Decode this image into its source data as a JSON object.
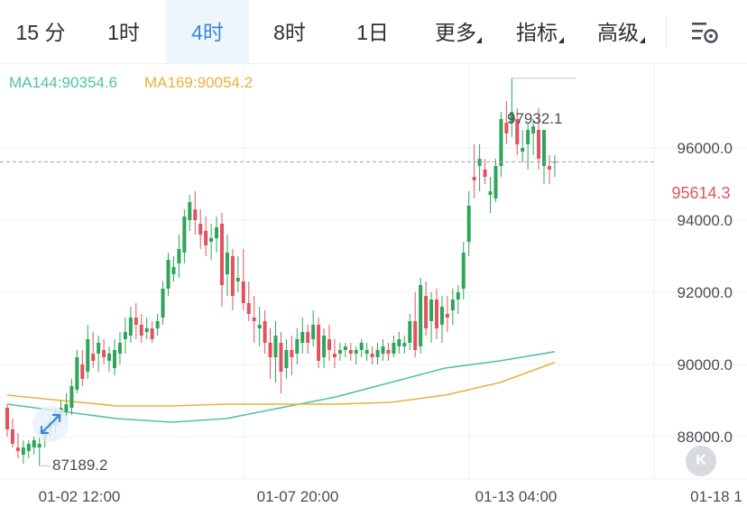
{
  "tabs": {
    "m15": "15 分",
    "h1": "1时",
    "h4": "4时",
    "h8": "8时",
    "d1": "1日",
    "more": "更多",
    "indicators": "指标",
    "advanced": "高级"
  },
  "legend": {
    "ma144": "MA144:90354.6",
    "ma169": "MA169:90054.2",
    "ma144_color": "#4fc3a1",
    "ma169_color": "#e8b33a"
  },
  "labels": {
    "high": "97932.1",
    "low": "87189.2",
    "current": "95614.3",
    "collapse": "K"
  },
  "colors": {
    "up": "#2ea55a",
    "down": "#e0535f",
    "grid": "#eef0f3",
    "axis_text": "#474d57",
    "active_tab": "#3a86d8"
  },
  "chart_data": {
    "type": "candlestick",
    "ylim": [
      87000,
      98200
    ],
    "yticks": [
      "88000.0",
      "90000.0",
      "92000.0",
      "94000.0",
      "96000.0"
    ],
    "ytick_values": [
      88000,
      90000,
      92000,
      94000,
      96000
    ],
    "xticks": [
      "01-02 12:00",
      "01-07 20:00",
      "01-13 04:00",
      "01-18 1"
    ],
    "current_price": 95614.3,
    "high_price": 97932.1,
    "low_price": 87189.2,
    "ma144": [
      88900,
      88700,
      88500,
      88400,
      88500,
      88800,
      89100,
      89500,
      89900,
      90100,
      90354.6
    ],
    "ma169": [
      89150,
      89000,
      88850,
      88850,
      88900,
      88900,
      88900,
      88950,
      89150,
      89500,
      90054.2
    ],
    "series": [
      {
        "name": "K-line",
        "ohlc": [
          [
            88800,
            88900,
            88000,
            88200
          ],
          [
            88200,
            88500,
            87700,
            87800
          ],
          [
            87700,
            88100,
            87400,
            87600
          ],
          [
            87500,
            87900,
            87250,
            87700
          ],
          [
            87600,
            87900,
            87400,
            87800
          ],
          [
            87700,
            88000,
            87500,
            87900
          ],
          [
            87700,
            88000,
            87189.2,
            87800
          ],
          [
            87900,
            88400,
            87700,
            88200
          ],
          [
            88200,
            88600,
            88000,
            88400
          ],
          [
            88300,
            88800,
            88100,
            88700
          ],
          [
            88600,
            89000,
            88400,
            88800
          ],
          [
            88700,
            89200,
            88500,
            88900
          ],
          [
            88800,
            89600,
            88600,
            89400
          ],
          [
            89300,
            90400,
            89200,
            90200
          ],
          [
            90000,
            90400,
            89400,
            89600
          ],
          [
            89800,
            91100,
            89600,
            90700
          ],
          [
            90300,
            90900,
            89900,
            90100
          ],
          [
            90300,
            90800,
            89800,
            90600
          ],
          [
            90400,
            90700,
            90000,
            90200
          ],
          [
            90100,
            90500,
            89800,
            90300
          ],
          [
            89900,
            90700,
            89700,
            90400
          ],
          [
            90300,
            90900,
            90000,
            90600
          ],
          [
            90700,
            91300,
            90300,
            90900
          ],
          [
            90800,
            91600,
            90600,
            91300
          ],
          [
            91300,
            91700,
            90700,
            91100
          ],
          [
            91100,
            91400,
            90600,
            90800
          ],
          [
            90900,
            91300,
            90700,
            91000
          ],
          [
            91000,
            91200,
            90600,
            90700
          ],
          [
            91000,
            91400,
            90800,
            91200
          ],
          [
            91300,
            92300,
            91100,
            92100
          ],
          [
            92100,
            93100,
            91900,
            92900
          ],
          [
            92500,
            93000,
            92300,
            92700
          ],
          [
            92800,
            93600,
            92400,
            93200
          ],
          [
            93100,
            94300,
            92800,
            94100
          ],
          [
            94000,
            94700,
            93700,
            94500
          ],
          [
            94300,
            94800,
            93600,
            94000
          ],
          [
            93900,
            94300,
            93200,
            93600
          ],
          [
            93700,
            94100,
            93000,
            93300
          ],
          [
            93400,
            93900,
            92900,
            93500
          ],
          [
            93500,
            94100,
            93100,
            93800
          ],
          [
            93900,
            94200,
            91600,
            92200
          ],
          [
            92500,
            93600,
            91900,
            93100
          ],
          [
            93000,
            93200,
            91500,
            91900
          ],
          [
            92300,
            93000,
            92000,
            92400
          ],
          [
            92300,
            93200,
            91500,
            91700
          ],
          [
            91700,
            92300,
            91200,
            91400
          ],
          [
            91300,
            91900,
            90600,
            91200
          ],
          [
            91000,
            91600,
            90500,
            91100
          ],
          [
            91200,
            91500,
            90300,
            90600
          ],
          [
            90600,
            91000,
            89600,
            90200
          ],
          [
            90200,
            91200,
            89500,
            90800
          ],
          [
            90600,
            90900,
            89200,
            89800
          ],
          [
            89900,
            90700,
            89600,
            90400
          ],
          [
            90400,
            90800,
            89700,
            90200
          ],
          [
            90300,
            91000,
            90000,
            90700
          ],
          [
            90600,
            91300,
            90300,
            90900
          ],
          [
            90900,
            91100,
            90300,
            90600
          ],
          [
            90700,
            91500,
            90500,
            91100
          ],
          [
            91100,
            91300,
            89900,
            90100
          ],
          [
            90200,
            91000,
            89900,
            90800
          ],
          [
            90700,
            91100,
            90100,
            90400
          ],
          [
            90300,
            90700,
            89900,
            90200
          ],
          [
            90300,
            90600,
            90100,
            90400
          ],
          [
            90400,
            90600,
            90200,
            90500
          ],
          [
            90400,
            90600,
            90100,
            90300
          ],
          [
            90300,
            90500,
            90000,
            90400
          ],
          [
            90400,
            90700,
            90200,
            90600
          ],
          [
            90300,
            90600,
            90100,
            90400
          ],
          [
            90300,
            90500,
            90000,
            90200
          ],
          [
            90200,
            90600,
            90000,
            90400
          ],
          [
            90300,
            90700,
            90100,
            90500
          ],
          [
            90400,
            90600,
            90100,
            90300
          ],
          [
            90300,
            90800,
            90200,
            90600
          ],
          [
            90500,
            90900,
            90300,
            90700
          ],
          [
            90500,
            90800,
            90300,
            90600
          ],
          [
            90600,
            91400,
            90400,
            91200
          ],
          [
            91200,
            92000,
            90200,
            90400
          ],
          [
            90500,
            92400,
            90300,
            92200
          ],
          [
            91900,
            92300,
            90800,
            91000
          ],
          [
            91200,
            92000,
            90600,
            91800
          ],
          [
            91800,
            92100,
            90700,
            91000
          ],
          [
            91100,
            91900,
            90600,
            91600
          ],
          [
            91400,
            91900,
            90900,
            91300
          ],
          [
            91500,
            92100,
            91100,
            91800
          ],
          [
            91800,
            92200,
            91400,
            92000
          ],
          [
            92100,
            93400,
            91800,
            93100
          ],
          [
            93400,
            94800,
            93000,
            94400
          ],
          [
            95200,
            96100,
            94600,
            95100
          ],
          [
            95500,
            96100,
            94800,
            95700
          ],
          [
            95400,
            95700,
            95000,
            95200
          ],
          [
            94700,
            95200,
            94200,
            94800
          ],
          [
            94600,
            95700,
            94500,
            95500
          ],
          [
            95500,
            97000,
            95200,
            96800
          ],
          [
            96700,
            97300,
            96100,
            96400
          ],
          [
            96700,
            97932.1,
            96300,
            97000
          ],
          [
            96800,
            97100,
            95800,
            96100
          ],
          [
            95900,
            96500,
            95600,
            96000
          ],
          [
            96100,
            96700,
            95400,
            96500
          ],
          [
            96400,
            96800,
            95800,
            96600
          ],
          [
            96500,
            97100,
            95400,
            95700
          ],
          [
            95500,
            96500,
            95000,
            96500
          ],
          [
            95500,
            95800,
            95000,
            95400
          ],
          [
            95600,
            95800,
            95200,
            95614.3
          ]
        ]
      }
    ]
  }
}
